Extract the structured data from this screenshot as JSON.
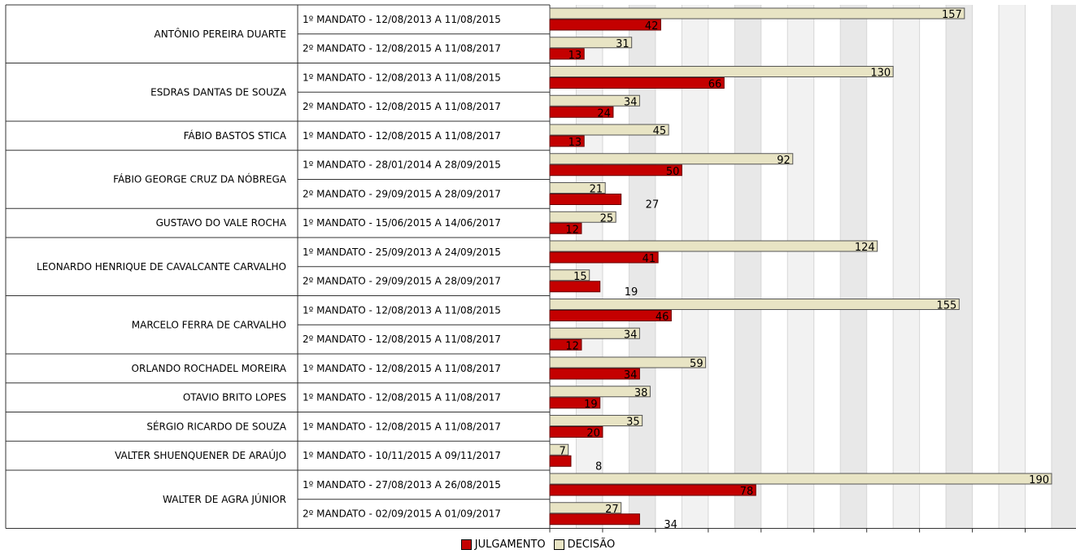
{
  "colors": {
    "julgamento": "#c40000",
    "decisao": "#e8e4c4"
  },
  "legend": {
    "julgamento": "JULGAMENTO",
    "decisao": "DECISÃO"
  },
  "chart_data": {
    "type": "bar",
    "orientation": "horizontal",
    "title": "",
    "xlim": [
      0,
      200
    ],
    "grid": true,
    "legend_position": "bottom-center",
    "groups": [
      {
        "name": "ANTÔNIO PEREIRA DUARTE",
        "rows": [
          {
            "mandate": "1º MANDATO - 12/08/2013 A 11/08/2015",
            "decisao": 157,
            "julgamento": 42
          },
          {
            "mandate": "2º MANDATO - 12/08/2015 A 11/08/2017",
            "decisao": 31,
            "julgamento": 13
          }
        ]
      },
      {
        "name": "ESDRAS DANTAS DE SOUZA",
        "rows": [
          {
            "mandate": "1º MANDATO - 12/08/2013 A 11/08/2015",
            "decisao": 130,
            "julgamento": 66
          },
          {
            "mandate": "2º MANDATO - 12/08/2015 A 11/08/2017",
            "decisao": 34,
            "julgamento": 24
          }
        ]
      },
      {
        "name": "FÁBIO BASTOS STICA",
        "rows": [
          {
            "mandate": "1º MANDATO - 12/08/2015 A 11/08/2017",
            "decisao": 45,
            "julgamento": 13
          }
        ]
      },
      {
        "name": "FÁBIO GEORGE CRUZ DA NÓBREGA",
        "rows": [
          {
            "mandate": "1º MANDATO - 28/01/2014 A 28/09/2015",
            "decisao": 92,
            "julgamento": 50
          },
          {
            "mandate": "2º MANDATO - 29/09/2015 A 28/09/2017",
            "decisao": 21,
            "julgamento": 27
          }
        ]
      },
      {
        "name": "GUSTAVO DO VALE ROCHA",
        "rows": [
          {
            "mandate": "1º MANDATO - 15/06/2015 A 14/06/2017",
            "decisao": 25,
            "julgamento": 12
          }
        ]
      },
      {
        "name": "LEONARDO HENRIQUE DE CAVALCANTE CARVALHO",
        "rows": [
          {
            "mandate": "1º MANDATO - 25/09/2013 A 24/09/2015",
            "decisao": 124,
            "julgamento": 41
          },
          {
            "mandate": "2º MANDATO - 29/09/2015 A 28/09/2017",
            "decisao": 15,
            "julgamento": 19
          }
        ]
      },
      {
        "name": "MARCELO FERRA DE CARVALHO",
        "rows": [
          {
            "mandate": "1º MANDATO - 12/08/2013 A 11/08/2015",
            "decisao": 155,
            "julgamento": 46
          },
          {
            "mandate": "2º MANDATO - 12/08/2015 A 11/08/2017",
            "decisao": 34,
            "julgamento": 12
          }
        ]
      },
      {
        "name": "ORLANDO ROCHADEL MOREIRA",
        "rows": [
          {
            "mandate": "1º MANDATO - 12/08/2015 A 11/08/2017",
            "decisao": 59,
            "julgamento": 34
          }
        ]
      },
      {
        "name": "OTAVIO BRITO LOPES",
        "rows": [
          {
            "mandate": "1º MANDATO - 12/08/2015 A 11/08/2017",
            "decisao": 38,
            "julgamento": 19
          }
        ]
      },
      {
        "name": "SÉRGIO RICARDO DE SOUZA",
        "rows": [
          {
            "mandate": "1º MANDATO - 12/08/2015 A 11/08/2017",
            "decisao": 35,
            "julgamento": 20
          }
        ]
      },
      {
        "name": "VALTER SHUENQUENER DE ARAÚJO",
        "rows": [
          {
            "mandate": "1º MANDATO - 10/11/2015 A 09/11/2017",
            "decisao": 7,
            "julgamento": 8
          }
        ]
      },
      {
        "name": "WALTER DE AGRA JÚNIOR",
        "rows": [
          {
            "mandate": "1º MANDATO - 27/08/2013 A 26/08/2015",
            "decisao": 190,
            "julgamento": 78
          },
          {
            "mandate": "2º MANDATO - 02/09/2015 A 01/09/2017",
            "decisao": 27,
            "julgamento": 34
          }
        ]
      }
    ]
  }
}
